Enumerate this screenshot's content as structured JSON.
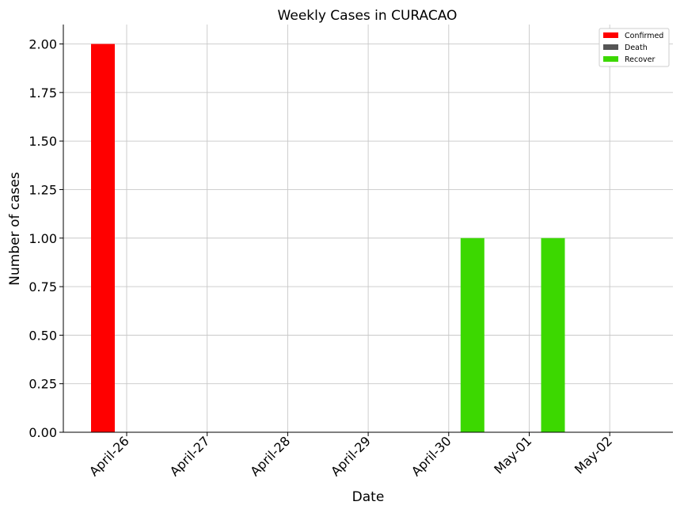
{
  "chart_data": {
    "type": "bar",
    "title": "Weekly Cases in CURACAO",
    "xlabel": "Date",
    "ylabel": "Number of cases",
    "categories": [
      "April-26",
      "April-27",
      "April-28",
      "April-29",
      "April-30",
      "May-01",
      "May-02"
    ],
    "series": [
      {
        "name": "Confirmed",
        "color": "#ff0000",
        "values": [
          2,
          0,
          0,
          0,
          0,
          0,
          0
        ]
      },
      {
        "name": "Death",
        "color": "#555555",
        "values": [
          0,
          0,
          0,
          0,
          0,
          0,
          0
        ]
      },
      {
        "name": "Recover",
        "color": "#3cd800",
        "values": [
          0,
          0,
          0,
          0,
          1,
          1,
          0
        ]
      }
    ],
    "ylim": [
      0,
      2.1
    ],
    "yticks": [
      "0.00",
      "0.25",
      "0.50",
      "0.75",
      "1.00",
      "1.25",
      "1.50",
      "1.75",
      "2.00"
    ],
    "grid": true,
    "legend_position": "top-right"
  }
}
